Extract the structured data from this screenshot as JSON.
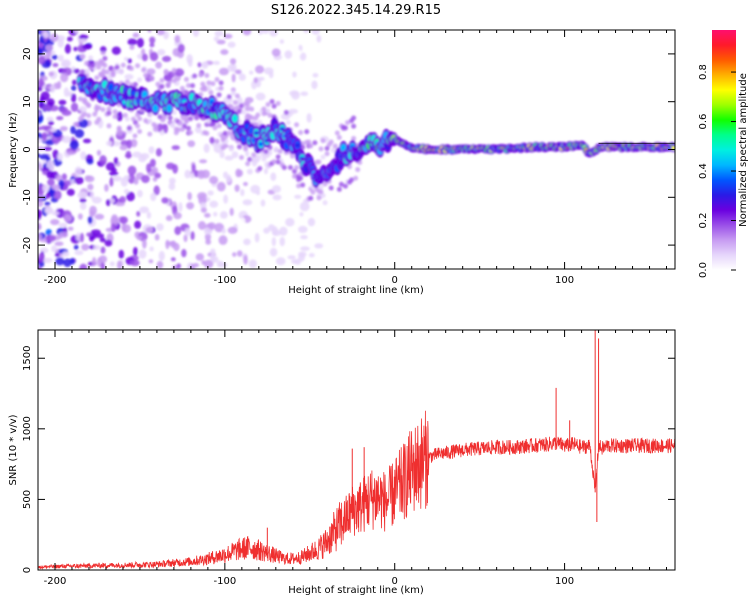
{
  "title": "S126.2022.345.14.29.R15",
  "colorbar": {
    "label": "Normalized spectral amplitude",
    "ticks": [
      "0.0",
      "0.2",
      "0.4",
      "0.6",
      "0.8"
    ],
    "tick_values": [
      0.0,
      0.2,
      0.4,
      0.6,
      0.8
    ],
    "range": [
      0,
      0.97
    ],
    "palette": [
      "#ffffff",
      "#e6d6fb",
      "#c79bf2",
      "#9a4fe8",
      "#6a00e0",
      "#2a1be6",
      "#0057ff",
      "#00b7ff",
      "#00f0e0",
      "#00ff8c",
      "#11ff00",
      "#9dff00",
      "#ffff00",
      "#ffb000",
      "#ff5a00",
      "#ff1a2a",
      "#ff0f6e"
    ]
  },
  "chart_data": [
    {
      "type": "heatmap",
      "xlabel": "Height of straight line (km)",
      "ylabel": "Frequency (Hz)",
      "xlim": [
        -210,
        165
      ],
      "ylim": [
        -25,
        25
      ],
      "xticks": [
        -200,
        -100,
        0,
        100
      ],
      "xtick_labels": [
        "-200",
        "-100",
        "0",
        "100"
      ],
      "yticks": [
        -20,
        -10,
        0,
        10,
        20
      ],
      "ytick_labels": [
        "-20",
        "-10",
        "0",
        "10",
        "20"
      ],
      "ridge": {
        "x": [
          -180,
          -170,
          -160,
          -150,
          -140,
          -130,
          -120,
          -110,
          -100,
          -90,
          -80,
          -70,
          -60,
          -50,
          -45,
          -40,
          -35,
          -30,
          -25,
          -20,
          -15,
          -10,
          -5,
          0,
          10,
          20,
          40,
          60,
          80,
          100,
          110,
          115,
          120,
          140,
          165
        ],
        "y": [
          13,
          12,
          11,
          10.5,
          10,
          10,
          10,
          9,
          7,
          4,
          2,
          4,
          1,
          -4,
          -6,
          -4,
          -3,
          -1,
          0,
          0.5,
          1,
          0.5,
          1.5,
          2,
          0.5,
          0,
          0,
          0,
          0.5,
          0.5,
          1,
          -1,
          0.5,
          0.5,
          0.5
        ],
        "peak_amplitude": [
          0.45,
          0.55,
          0.5,
          0.55,
          0.5,
          0.55,
          0.5,
          0.5,
          0.45,
          0.45,
          0.4,
          0.45,
          0.35,
          0.35,
          0.3,
          0.3,
          0.35,
          0.35,
          0.45,
          0.55,
          0.6,
          0.55,
          0.7,
          0.75,
          0.85,
          0.9,
          0.9,
          0.88,
          0.9,
          0.92,
          0.9,
          0.85,
          0.85,
          0.9,
          0.9
        ]
      }
    },
    {
      "type": "line",
      "xlabel": "Height of straight line (km)",
      "ylabel": "SNR (10 * v/v)",
      "xlim": [
        -210,
        165
      ],
      "ylim": [
        0,
        1700
      ],
      "xticks": [
        -200,
        -100,
        0,
        100
      ],
      "xtick_labels": [
        "-200",
        "-100",
        "0",
        "100"
      ],
      "yticks": [
        0,
        500,
        1000,
        1500
      ],
      "ytick_labels": [
        "0",
        "500",
        "1000",
        "1500"
      ],
      "series": [
        {
          "color": "#ef2f2f",
          "x": [
            -210,
            -200,
            -180,
            -160,
            -140,
            -120,
            -110,
            -100,
            -95,
            -90,
            -85,
            -80,
            -75,
            -70,
            -65,
            -60,
            -55,
            -50,
            -45,
            -40,
            -35,
            -30,
            -25,
            -20,
            -15,
            -10,
            -5,
            0,
            5,
            10,
            15,
            20,
            25,
            30,
            40,
            50,
            60,
            70,
            80,
            90,
            95,
            100,
            105,
            110,
            115,
            118,
            120,
            122,
            125,
            130,
            140,
            150,
            160,
            165
          ],
          "y": [
            20,
            25,
            30,
            35,
            40,
            60,
            80,
            110,
            130,
            150,
            160,
            140,
            120,
            100,
            80,
            80,
            90,
            120,
            150,
            200,
            280,
            350,
            420,
            450,
            500,
            520,
            480,
            550,
            620,
            700,
            760,
            800,
            820,
            830,
            850,
            860,
            870,
            870,
            880,
            890,
            900,
            880,
            890,
            870,
            880,
            550,
            880,
            860,
            880,
            880,
            880,
            880,
            880,
            880
          ],
          "spikes": [
            {
              "x": -75,
              "y": 300
            },
            {
              "x": -25,
              "y": 860
            },
            {
              "x": -18,
              "y": 870
            },
            {
              "x": 10,
              "y": 820
            },
            {
              "x": 95,
              "y": 1290
            },
            {
              "x": 118,
              "y": 1700
            },
            {
              "x": 120,
              "y": 1640
            },
            {
              "x": 119,
              "y": 340
            },
            {
              "x": 103,
              "y": 1060
            }
          ]
        }
      ]
    }
  ]
}
